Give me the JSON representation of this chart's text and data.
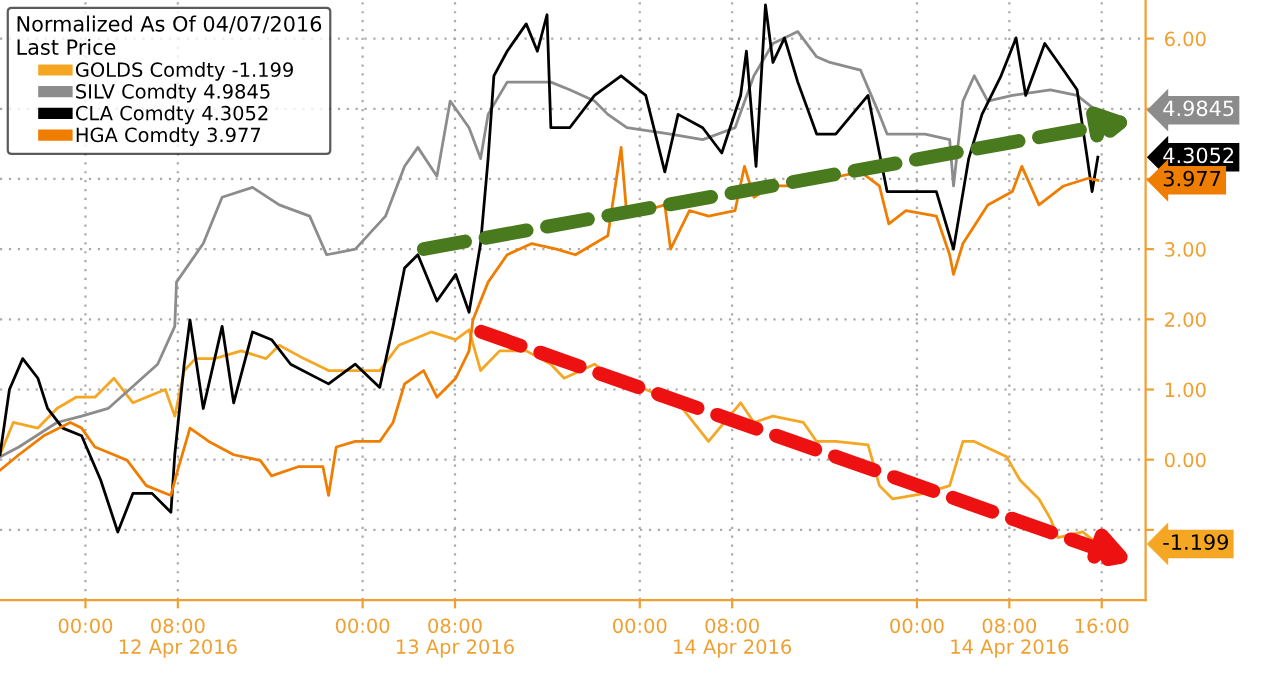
{
  "chart_data": {
    "type": "line",
    "legend_title": "Normalized As Of 04/07/2016\nLast Price",
    "legend": "top left",
    "grid": true,
    "xlim": [
      "2016-04-11T16:36",
      "2016-04-15T19:48"
    ],
    "xticks": [
      {
        "value": "2016-04-12T00:00",
        "label": "00:00"
      },
      {
        "value": "2016-04-12T08:00",
        "label": "08:00"
      },
      {
        "value": "2016-04-13T00:00",
        "label": "00:00"
      },
      {
        "value": "2016-04-13T08:00",
        "label": "08:00"
      },
      {
        "value": "2016-04-14T00:00",
        "label": "00:00"
      },
      {
        "value": "2016-04-14T08:00",
        "label": "08:00"
      },
      {
        "value": "2016-04-15T00:00",
        "label": "00:00"
      },
      {
        "value": "2016-04-15T08:00",
        "label": "08:00"
      },
      {
        "value": "2016-04-15T16:00",
        "label": "16:00"
      }
    ],
    "ylim": [
      -2.0,
      6.55
    ],
    "yticks": [
      {
        "value": -1,
        "label": null
      },
      {
        "value": 0,
        "label": "0.00"
      },
      {
        "value": 1,
        "label": "1.00"
      },
      {
        "value": 2,
        "label": "2.00"
      },
      {
        "value": 3,
        "label": "3.00"
      },
      {
        "value": 4,
        "label": null
      },
      {
        "value": 5,
        "label": null
      },
      {
        "value": 6,
        "label": "6.00"
      }
    ],
    "annotations": [
      "-1.199",
      "4.9845",
      "4.3052",
      "3.977",
      "12 Apr 2016",
      "13 Apr 2016",
      "14 Apr 2016",
      "14 Apr 2016"
    ],
    "series": [
      {
        "name": "GOLDS Comdty -1.199",
        "color": "#f5a623",
        "x": [
          "2016-04-11T16:36",
          "2016-04-11T17:45",
          "2016-04-11T19:53",
          "2016-04-11T21:32",
          "2016-04-11T23:11",
          "2016-04-12T00:49",
          "2016-04-12T02:28",
          "2016-04-12T04:07",
          "2016-04-12T05:16",
          "2016-04-12T06:55",
          "2016-04-12T07:44",
          "2016-04-12T08:33",
          "2016-04-12T09:32",
          "2016-04-12T11:11",
          "2016-04-12T13:29",
          "2016-04-12T15:38",
          "2016-04-12T16:47",
          "2016-04-12T18:55",
          "2016-04-12T21:03",
          "2016-04-12T23:22",
          "2016-04-13T01:29",
          "2016-04-13T03:08",
          "2016-04-13T05:56",
          "2016-04-13T08:04",
          "2016-04-13T09:13",
          "2016-04-13T10:13",
          "2016-04-13T11:52",
          "2016-04-13T14:10",
          "2016-04-13T16:18",
          "2016-04-13T17:27",
          "2016-04-13T20:05",
          "2016-04-13T21:14",
          "2016-04-14T00:31",
          "2016-04-14T03:19",
          "2016-04-14T05:57",
          "2016-04-14T08:44",
          "2016-04-14T09:53",
          "2016-04-14T11:32",
          "2016-04-14T14:10",
          "2016-04-14T15:19",
          "2016-04-14T16:58",
          "2016-04-14T19:46",
          "2016-04-14T20:45",
          "2016-04-14T21:54",
          "2016-04-15T00:42",
          "2016-04-15T02:50",
          "2016-04-15T03:59",
          "2016-04-15T04:58",
          "2016-04-15T07:46",
          "2016-04-15T08:55",
          "2016-04-15T10:34",
          "2016-04-15T11:33",
          "2016-04-15T12:13",
          "2016-04-15T14:21",
          "2016-04-15T15:40"
        ],
        "values": [
          0.07,
          0.53,
          0.45,
          0.73,
          0.89,
          0.89,
          1.16,
          0.81,
          0.89,
          1.0,
          0.62,
          1.27,
          1.44,
          1.44,
          1.55,
          1.44,
          1.63,
          1.44,
          1.27,
          1.27,
          1.27,
          1.63,
          1.82,
          1.71,
          1.85,
          1.27,
          1.55,
          1.55,
          1.36,
          1.16,
          1.36,
          1.22,
          1.0,
          0.81,
          0.26,
          0.81,
          0.53,
          0.62,
          0.53,
          0.26,
          0.26,
          0.21,
          -0.37,
          -0.56,
          -0.48,
          -0.37,
          0.26,
          0.26,
          0.04,
          -0.29,
          -0.56,
          -0.84,
          -1.11,
          -1.03,
          -1.2
        ]
      },
      {
        "name": "SILV Comdty 4.9845",
        "color": "#8c8c8c",
        "x": [
          "2016-04-11T16:36",
          "2016-04-11T18:14",
          "2016-04-11T21:32",
          "2016-04-11T23:40",
          "2016-04-12T01:58",
          "2016-04-12T06:15",
          "2016-04-12T07:44",
          "2016-04-12T07:53",
          "2016-04-12T10:12",
          "2016-04-12T11:50",
          "2016-04-12T14:28",
          "2016-04-12T16:47",
          "2016-04-12T19:25",
          "2016-04-12T20:53",
          "2016-04-12T23:22",
          "2016-04-13T01:59",
          "2016-04-13T03:38",
          "2016-04-13T04:47",
          "2016-04-13T06:26",
          "2016-04-13T07:35",
          "2016-04-13T09:13",
          "2016-04-13T10:13",
          "2016-04-13T10:52",
          "2016-04-13T12:31",
          "2016-04-13T14:10",
          "2016-04-13T16:18",
          "2016-04-13T17:56",
          "2016-04-13T20:05",
          "2016-04-13T21:14",
          "2016-04-13T22:53",
          "2016-04-14T02:40",
          "2016-04-14T05:27",
          "2016-04-14T08:15",
          "2016-04-14T09:53",
          "2016-04-14T11:32",
          "2016-04-14T13:41",
          "2016-04-14T15:19",
          "2016-04-14T16:28",
          "2016-04-14T19:07",
          "2016-04-14T20:45",
          "2016-04-14T21:25",
          "2016-04-15T00:42",
          "2016-04-15T02:50",
          "2016-04-15T03:10",
          "2016-04-15T03:59",
          "2016-04-15T04:58",
          "2016-04-15T06:08",
          "2016-04-15T08:16",
          "2016-04-15T11:33",
          "2016-04-15T13:52",
          "2016-04-15T15:30"
        ],
        "values": [
          0.04,
          0.18,
          0.53,
          0.62,
          0.73,
          1.36,
          1.9,
          2.53,
          3.08,
          3.74,
          3.88,
          3.63,
          3.47,
          2.92,
          3.0,
          3.47,
          4.18,
          4.45,
          4.04,
          5.11,
          4.73,
          4.29,
          4.92,
          5.38,
          5.38,
          5.38,
          5.27,
          5.11,
          4.92,
          4.73,
          4.64,
          4.56,
          4.73,
          5.47,
          5.93,
          6.1,
          5.74,
          5.66,
          5.55,
          4.92,
          4.64,
          4.64,
          4.56,
          3.9,
          5.11,
          5.47,
          5.11,
          5.19,
          5.27,
          5.19,
          4.98
        ]
      },
      {
        "name": "CLA Comdty 4.3052",
        "color": "#000000",
        "x": [
          "2016-04-11T16:36",
          "2016-04-11T17:25",
          "2016-04-11T18:34",
          "2016-04-11T19:53",
          "2016-04-11T20:43",
          "2016-04-11T22:02",
          "2016-04-11T23:40",
          "2016-04-12T01:19",
          "2016-04-12T02:48",
          "2016-04-12T04:07",
          "2016-04-12T05:46",
          "2016-04-12T07:24",
          "2016-04-12T07:44",
          "2016-04-12T08:33",
          "2016-04-12T09:03",
          "2016-04-12T10:12",
          "2016-04-12T11:50",
          "2016-04-12T12:50",
          "2016-04-12T14:28",
          "2016-04-12T16:07",
          "2016-04-12T17:46",
          "2016-04-12T21:03",
          "2016-04-12T23:22",
          "2016-04-13T01:29",
          "2016-04-13T02:38",
          "2016-04-13T03:38",
          "2016-04-13T04:47",
          "2016-04-13T06:26",
          "2016-04-13T08:04",
          "2016-04-13T09:13",
          "2016-04-13T10:13",
          "2016-04-13T10:52",
          "2016-04-13T11:22",
          "2016-04-13T12:31",
          "2016-04-13T14:10",
          "2016-04-13T15:08",
          "2016-04-13T15:58",
          "2016-04-13T16:18",
          "2016-04-13T17:56",
          "2016-04-13T20:05",
          "2016-04-13T22:23",
          "2016-04-14T00:31",
          "2016-04-14T02:10",
          "2016-04-14T03:19",
          "2016-04-14T05:27",
          "2016-04-14T07:06",
          "2016-04-14T08:44",
          "2016-04-14T09:14",
          "2016-04-14T10:04",
          "2016-04-14T10:53",
          "2016-04-14T11:32",
          "2016-04-14T12:32",
          "2016-04-14T13:41",
          "2016-04-14T15:19",
          "2016-04-14T16:58",
          "2016-04-14T19:46",
          "2016-04-14T20:45",
          "2016-04-14T21:25",
          "2016-04-14T23:33",
          "2016-04-15T01:41",
          "2016-04-15T03:10",
          "2016-04-15T04:29",
          "2016-04-15T05:38",
          "2016-04-15T07:17",
          "2016-04-15T08:35",
          "2016-04-15T09:25",
          "2016-04-15T11:04",
          "2016-04-15T12:42",
          "2016-04-15T13:52",
          "2016-04-15T14:41",
          "2016-04-15T15:10",
          "2016-04-15T15:40"
        ],
        "values": [
          0.07,
          1.0,
          1.44,
          1.16,
          0.73,
          0.45,
          0.34,
          -0.29,
          -1.03,
          -0.48,
          -0.48,
          -0.75,
          0.07,
          1.36,
          1.99,
          0.73,
          1.9,
          0.81,
          1.82,
          1.71,
          1.36,
          1.08,
          1.36,
          1.03,
          1.9,
          2.73,
          2.92,
          2.26,
          2.64,
          2.1,
          3.08,
          4.29,
          5.47,
          5.82,
          6.21,
          5.82,
          6.34,
          4.73,
          4.73,
          5.19,
          5.47,
          5.19,
          4.1,
          4.92,
          4.73,
          4.37,
          5.19,
          5.82,
          4.18,
          6.48,
          5.66,
          6.01,
          5.38,
          4.64,
          4.64,
          5.19,
          4.37,
          3.82,
          3.82,
          3.82,
          3.0,
          4.29,
          4.92,
          5.47,
          6.01,
          5.19,
          5.93,
          5.55,
          5.27,
          4.37,
          3.82,
          4.31
        ]
      },
      {
        "name": "HGA Comdty 3.977",
        "color": "#ef7d00",
        "x": [
          "2016-04-11T16:36",
          "2016-04-11T18:14",
          "2016-04-11T20:23",
          "2016-04-11T22:41",
          "2016-04-11T23:40",
          "2016-04-12T00:49",
          "2016-04-12T02:28",
          "2016-04-12T03:37",
          "2016-04-12T05:16",
          "2016-04-12T07:24",
          "2016-04-12T07:53",
          "2016-04-12T09:03",
          "2016-04-12T10:41",
          "2016-04-12T12:50",
          "2016-04-12T15:08",
          "2016-04-12T16:07",
          "2016-04-12T18:25",
          "2016-04-12T20:34",
          "2016-04-12T21:03",
          "2016-04-12T21:43",
          "2016-04-12T23:22",
          "2016-04-13T01:29",
          "2016-04-13T02:38",
          "2016-04-13T03:38",
          "2016-04-13T05:17",
          "2016-04-13T06:26",
          "2016-04-13T08:04",
          "2016-04-13T09:13",
          "2016-04-13T09:33",
          "2016-04-13T10:52",
          "2016-04-13T12:31",
          "2016-04-13T14:39",
          "2016-04-13T16:47",
          "2016-04-13T18:26",
          "2016-04-13T20:05",
          "2016-04-13T21:14",
          "2016-04-13T22:23",
          "2016-04-13T22:53",
          "2016-04-14T00:31",
          "2016-04-14T02:10",
          "2016-04-14T02:40",
          "2016-04-14T04:18",
          "2016-04-14T05:57",
          "2016-04-14T08:15",
          "2016-04-14T09:04",
          "2016-04-14T09:53",
          "2016-04-14T11:32",
          "2016-04-14T13:41",
          "2016-04-14T16:28",
          "2016-04-14T19:07",
          "2016-04-14T20:45",
          "2016-04-14T21:34",
          "2016-04-14T23:03",
          "2016-04-15T01:41",
          "2016-04-15T02:50",
          "2016-04-15T03:10",
          "2016-04-15T03:59",
          "2016-04-15T06:08",
          "2016-04-15T08:16",
          "2016-04-15T09:05",
          "2016-04-15T10:34",
          "2016-04-15T12:42",
          "2016-04-15T14:50",
          "2016-04-15T15:40"
        ],
        "values": [
          -0.15,
          0.07,
          0.34,
          0.53,
          0.45,
          0.18,
          0.07,
          -0.01,
          -0.37,
          -0.51,
          -0.21,
          0.45,
          0.26,
          0.07,
          -0.01,
          -0.23,
          -0.1,
          -0.1,
          -0.51,
          0.18,
          0.26,
          0.26,
          0.53,
          1.08,
          1.27,
          0.89,
          1.16,
          1.55,
          1.99,
          2.53,
          2.92,
          3.08,
          3.0,
          2.92,
          3.08,
          3.19,
          4.45,
          3.47,
          3.55,
          3.63,
          3.0,
          3.55,
          3.47,
          3.55,
          4.18,
          3.74,
          3.9,
          3.9,
          4.01,
          4.1,
          3.9,
          3.36,
          3.55,
          3.47,
          2.92,
          2.64,
          3.08,
          3.63,
          3.82,
          4.18,
          3.63,
          3.9,
          4.01,
          3.98
        ]
      }
    ]
  }
}
